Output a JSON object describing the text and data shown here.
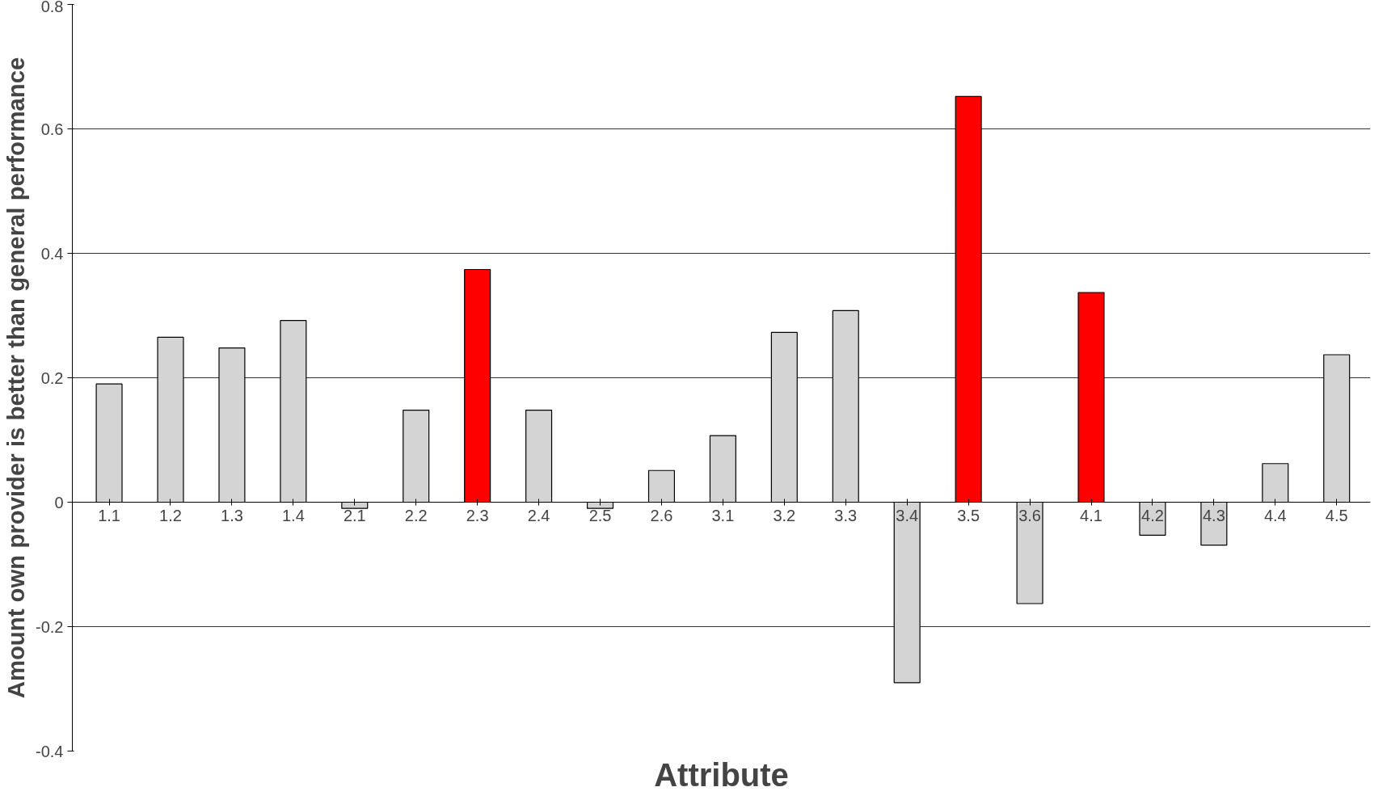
{
  "chart_data": {
    "type": "bar",
    "xlabel": "Attribute",
    "ylabel": "Amount own provider is better than general performance",
    "categories": [
      "1.1",
      "1.2",
      "1.3",
      "1.4",
      "2.1",
      "2.2",
      "2.3",
      "2.4",
      "2.5",
      "2.6",
      "3.1",
      "3.2",
      "3.3",
      "3.4",
      "3.5",
      "3.6",
      "4.1",
      "4.2",
      "4.3",
      "4.4",
      "4.5"
    ],
    "values": [
      0.19,
      0.265,
      0.248,
      0.292,
      -0.01,
      0.148,
      0.374,
      0.148,
      -0.01,
      0.051,
      0.107,
      0.273,
      0.308,
      -0.29,
      0.652,
      -0.163,
      0.337,
      -0.053,
      -0.069,
      0.062,
      0.237
    ],
    "colors": [
      "#d4d4d4",
      "#d4d4d4",
      "#d4d4d4",
      "#d4d4d4",
      "#d4d4d4",
      "#d4d4d4",
      "#ff0000",
      "#d4d4d4",
      "#d4d4d4",
      "#d4d4d4",
      "#d4d4d4",
      "#d4d4d4",
      "#d4d4d4",
      "#d4d4d4",
      "#ff0000",
      "#d4d4d4",
      "#ff0000",
      "#d4d4d4",
      "#d4d4d4",
      "#d4d4d4",
      "#d4d4d4"
    ],
    "ylim": [
      -0.4,
      0.8
    ],
    "yticks": [
      -0.4,
      -0.2,
      0,
      0.2,
      0.4,
      0.6,
      0.8
    ],
    "grid": "y"
  }
}
